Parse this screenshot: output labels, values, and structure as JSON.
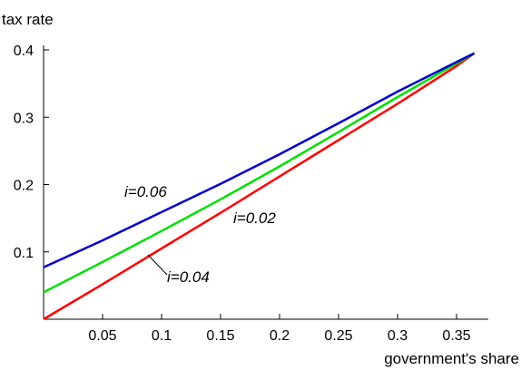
{
  "chart_data": {
    "type": "line",
    "title": "",
    "xlabel": "government's share",
    "ylabel": "tax rate",
    "xlim": [
      0,
      0.37
    ],
    "ylim": [
      0,
      0.4
    ],
    "grid": false,
    "x_ticks": [
      {
        "value": 0.05,
        "label": "0.05"
      },
      {
        "value": 0.1,
        "label": "0.1"
      },
      {
        "value": 0.15,
        "label": "0.15"
      },
      {
        "value": 0.2,
        "label": "0.2"
      },
      {
        "value": 0.25,
        "label": "0.25"
      },
      {
        "value": 0.3,
        "label": "0.3"
      },
      {
        "value": 0.35,
        "label": "0.35"
      }
    ],
    "y_ticks": [
      {
        "value": 0.1,
        "label": "0.1"
      },
      {
        "value": 0.2,
        "label": "0.2"
      },
      {
        "value": 0.3,
        "label": "0.3"
      },
      {
        "value": 0.4,
        "label": "0.4"
      }
    ],
    "series": [
      {
        "name": "i=0.06",
        "color": "#0000cc",
        "x": [
          0,
          0.05,
          0.1,
          0.15,
          0.2,
          0.25,
          0.3,
          0.35,
          0.365
        ],
        "y": [
          0.077,
          0.117,
          0.159,
          0.201,
          0.245,
          0.291,
          0.338,
          0.382,
          0.395
        ]
      },
      {
        "name": "i=0.04",
        "color": "#00e000",
        "x": [
          0,
          0.05,
          0.1,
          0.15,
          0.2,
          0.25,
          0.3,
          0.35,
          0.365
        ],
        "y": [
          0.04,
          0.085,
          0.131,
          0.178,
          0.227,
          0.278,
          0.33,
          0.38,
          0.395
        ]
      },
      {
        "name": "i=0.02",
        "color": "#ff0000",
        "x": [
          0,
          0.05,
          0.1,
          0.15,
          0.2,
          0.25,
          0.3,
          0.35,
          0.365
        ],
        "y": [
          0,
          0.052,
          0.105,
          0.158,
          0.212,
          0.266,
          0.32,
          0.376,
          0.395
        ]
      }
    ],
    "annotations": [
      {
        "text": "i=0.06",
        "series": "i=0.06"
      },
      {
        "text": "i=0.02",
        "series": "i=0.02"
      },
      {
        "text": "i=0.04",
        "series": "i=0.04",
        "pointer": true
      }
    ]
  }
}
